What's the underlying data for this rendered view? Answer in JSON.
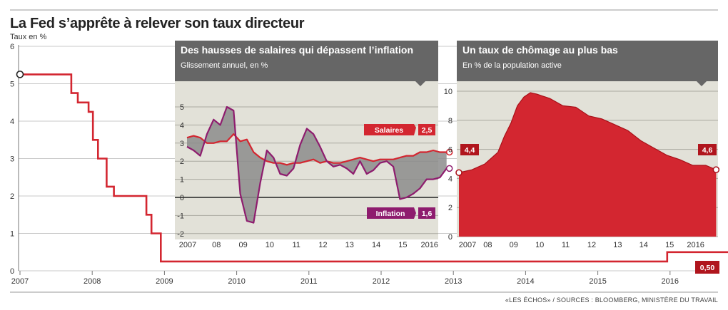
{
  "page": {
    "title": "La Fed s’apprête à relever son taux directeur",
    "unit": "Taux en %",
    "source": "«LES ÉCHOS» / SOURCES : BLOOMBERG, MINISTÈRE DU TRAVAIL"
  },
  "colors": {
    "fed_line": "#d32630",
    "salaires": "#d32630",
    "inflation": "#8e1c6e",
    "gap_fill": "#8c8c8c",
    "panel_bg": "#e2e1d8",
    "panel_header": "#666666",
    "unemployment_fill": "#d32630",
    "axis_text": "#333333"
  },
  "chart_data": [
    {
      "id": "fed-funds",
      "type": "line",
      "ylim": [
        0,
        6
      ],
      "yticks": [
        "0",
        "1",
        "2",
        "3",
        "4",
        "5",
        "6"
      ],
      "x_ticks": [
        "2007",
        "2008",
        "2009",
        "2010",
        "2011",
        "2012",
        "2013",
        "2014",
        "2015",
        "2016"
      ],
      "x": [
        2007.0,
        2007.55,
        2007.71,
        2007.8,
        2007.83,
        2007.87,
        2007.95,
        2008.01,
        2008.08,
        2008.2,
        2008.3,
        2008.75,
        2008.82,
        2008.95,
        2015.96,
        2016.95
      ],
      "y": [
        5.25,
        5.25,
        4.75,
        4.5,
        4.5,
        4.5,
        4.25,
        3.5,
        3.0,
        2.25,
        2.0,
        1.5,
        1.0,
        0.25,
        0.5,
        0.5
      ],
      "end_label": "0,50"
    },
    {
      "id": "salaires-vs-inflation",
      "type": "line",
      "title": "Des hausses de salaires qui dépassent l’inflation",
      "subtitle": "Glissement annuel, en %",
      "ylim": [
        -2,
        6
      ],
      "yticks": [
        "-2",
        "-1",
        "0",
        "1",
        "2",
        "3",
        "4",
        "5"
      ],
      "x_ticks": [
        "2007",
        "08",
        "09",
        "10",
        "11",
        "12",
        "13",
        "14",
        "15",
        "2016"
      ],
      "x": [
        2007.0,
        2007.25,
        2007.5,
        2007.75,
        2008.0,
        2008.25,
        2008.5,
        2008.75,
        2009.0,
        2009.25,
        2009.5,
        2009.75,
        2010.0,
        2010.25,
        2010.5,
        2010.75,
        2011.0,
        2011.25,
        2011.5,
        2011.75,
        2012.0,
        2012.25,
        2012.5,
        2012.75,
        2013.0,
        2013.25,
        2013.5,
        2013.75,
        2014.0,
        2014.25,
        2014.5,
        2014.75,
        2015.0,
        2015.25,
        2015.5,
        2015.75,
        2016.0,
        2016.25,
        2016.5,
        2016.75
      ],
      "series": [
        {
          "name": "Salaires",
          "values": [
            3.3,
            3.4,
            3.3,
            3.0,
            3.0,
            3.1,
            3.1,
            3.5,
            3.1,
            3.2,
            2.5,
            2.2,
            2.0,
            1.9,
            1.9,
            1.8,
            1.9,
            1.9,
            2.0,
            2.1,
            1.9,
            2.0,
            1.9,
            1.9,
            2.0,
            2.1,
            2.2,
            2.1,
            2.0,
            2.1,
            2.1,
            2.1,
            2.2,
            2.3,
            2.3,
            2.5,
            2.5,
            2.6,
            2.5,
            2.5
          ],
          "end_label": "2,5"
        },
        {
          "name": "Inflation",
          "values": [
            2.8,
            2.6,
            2.3,
            3.5,
            4.3,
            4.0,
            5.0,
            4.8,
            0.2,
            -1.3,
            -1.4,
            0.8,
            2.6,
            2.2,
            1.3,
            1.2,
            1.6,
            2.9,
            3.8,
            3.5,
            2.8,
            2.0,
            1.7,
            1.8,
            1.6,
            1.3,
            2.0,
            1.3,
            1.5,
            1.9,
            2.0,
            1.7,
            -0.1,
            0.0,
            0.2,
            0.5,
            1.0,
            1.0,
            1.1,
            1.6
          ],
          "end_label": "1,6"
        }
      ]
    },
    {
      "id": "chomage",
      "type": "area",
      "title": "Un taux de chômage au plus bas",
      "subtitle": "En % de la population active",
      "ylim": [
        0,
        11
      ],
      "yticks": [
        "0",
        "2",
        "4",
        "6",
        "8",
        "10"
      ],
      "x_ticks": [
        "2007",
        "08",
        "09",
        "10",
        "11",
        "12",
        "13",
        "14",
        "15",
        "2016"
      ],
      "x": [
        2007.0,
        2007.5,
        2008.0,
        2008.25,
        2008.5,
        2008.75,
        2009.0,
        2009.25,
        2009.5,
        2009.75,
        2010.0,
        2010.5,
        2011.0,
        2011.5,
        2012.0,
        2012.5,
        2013.0,
        2013.5,
        2014.0,
        2014.5,
        2015.0,
        2015.5,
        2016.0,
        2016.5,
        2016.9
      ],
      "series": [
        {
          "name": "Chômage",
          "values": [
            4.4,
            4.6,
            5.0,
            5.4,
            5.8,
            6.9,
            7.8,
            9.0,
            9.6,
            9.9,
            9.8,
            9.5,
            9.0,
            8.9,
            8.3,
            8.1,
            7.7,
            7.3,
            6.6,
            6.1,
            5.6,
            5.3,
            4.9,
            4.9,
            4.6
          ]
        }
      ],
      "start_label": "4,4",
      "end_label": "4,6"
    }
  ]
}
